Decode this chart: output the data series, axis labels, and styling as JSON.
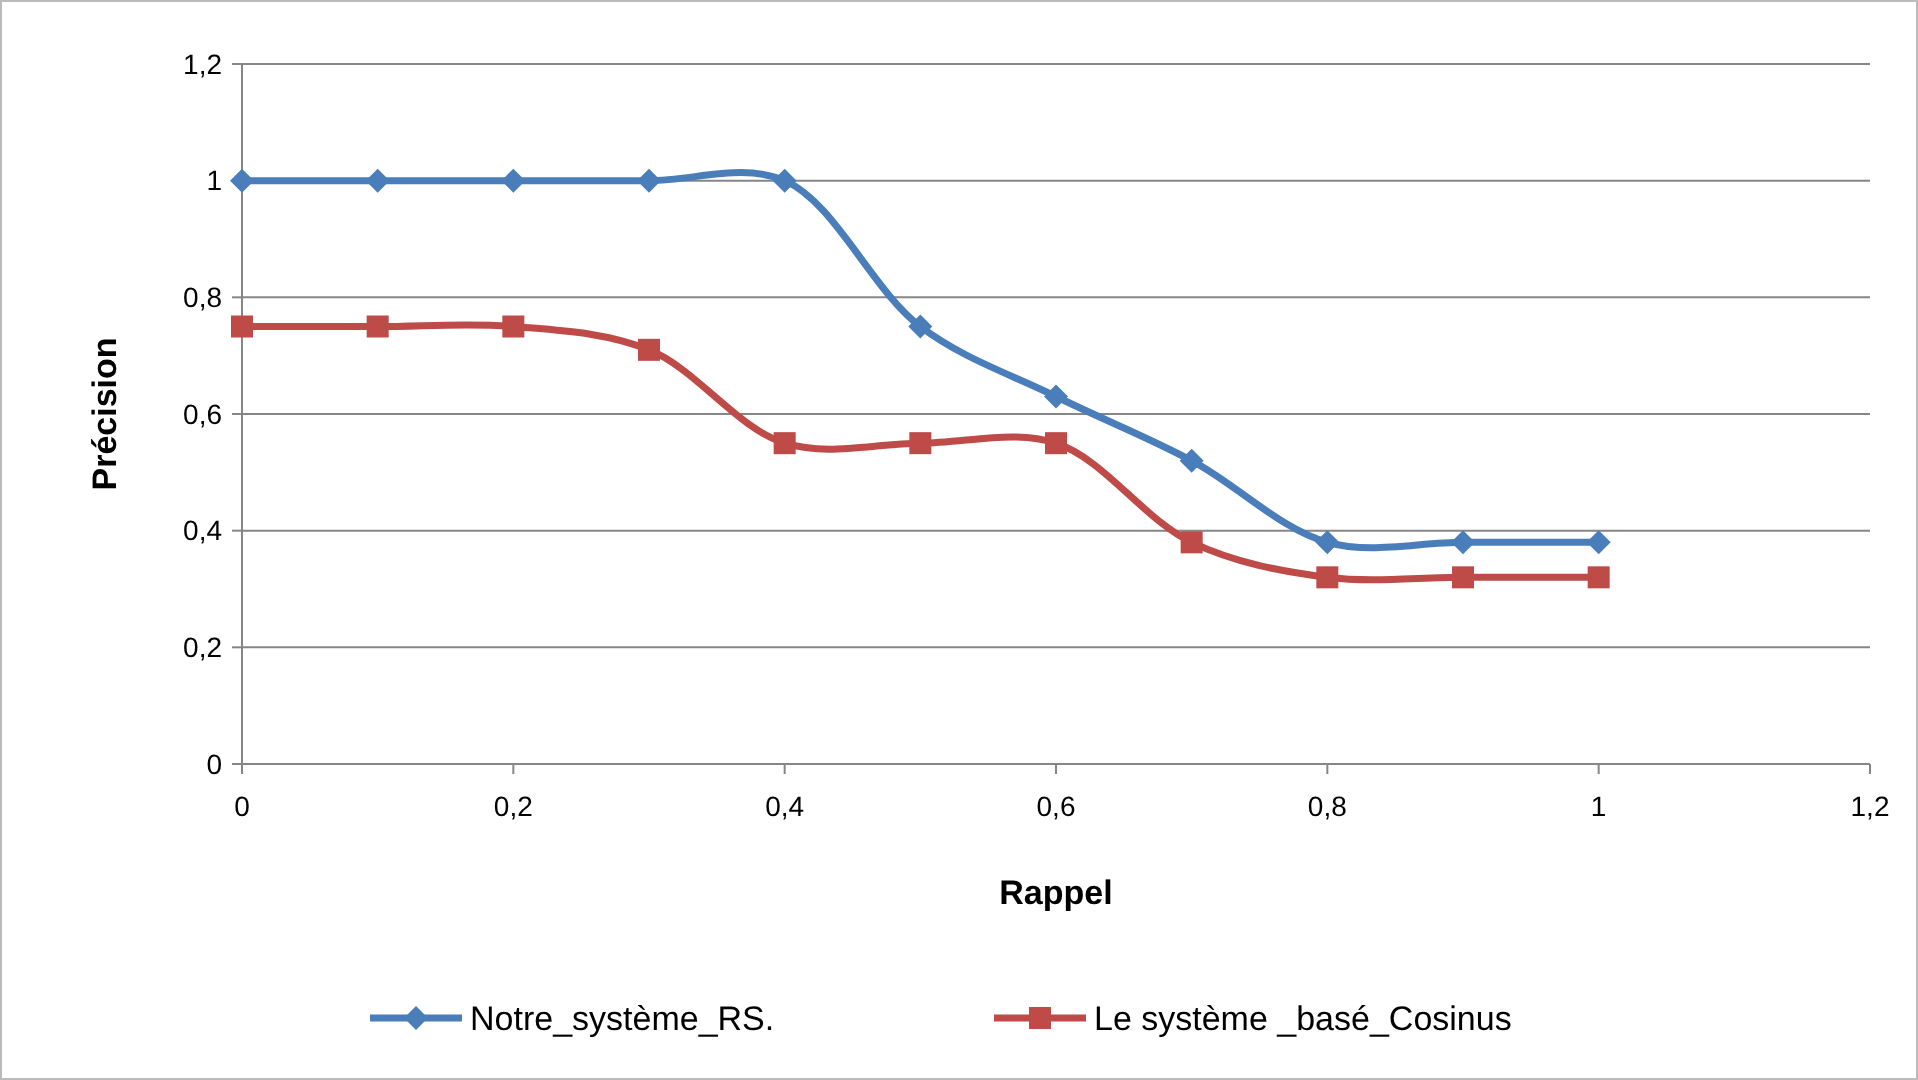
{
  "chart_data": {
    "type": "line",
    "xlabel": "Rappel",
    "ylabel": "Précision",
    "x": [
      0,
      0.1,
      0.2,
      0.3,
      0.4,
      0.5,
      0.6,
      0.7,
      0.8,
      0.9,
      1
    ],
    "series": [
      {
        "name": "Notre_système_RS.",
        "color": "#4a7ebb",
        "marker": "diamond",
        "values": [
          1,
          1,
          1,
          1,
          1,
          0.75,
          0.63,
          0.52,
          0.38,
          0.38,
          0.38
        ]
      },
      {
        "name": "Le système _basé_Cosinus",
        "color": "#be4b48",
        "marker": "square",
        "values": [
          0.75,
          0.75,
          0.75,
          0.71,
          0.55,
          0.55,
          0.55,
          0.38,
          0.32,
          0.32,
          0.32
        ]
      }
    ],
    "xlim": [
      0,
      1.2
    ],
    "xticks": [
      {
        "value": 0,
        "label": "0"
      },
      {
        "value": 0.2,
        "label": "0,2"
      },
      {
        "value": 0.4,
        "label": "0,4"
      },
      {
        "value": 0.6,
        "label": "0,6"
      },
      {
        "value": 0.8,
        "label": "0,8"
      },
      {
        "value": 1,
        "label": "1"
      },
      {
        "value": 1.2,
        "label": "1,2"
      }
    ],
    "ylim": [
      0,
      1.2
    ],
    "yticks": [
      {
        "value": 0,
        "label": "0"
      },
      {
        "value": 0.2,
        "label": "0,2"
      },
      {
        "value": 0.4,
        "label": "0,4"
      },
      {
        "value": 0.6,
        "label": "0,6"
      },
      {
        "value": 0.8,
        "label": "0,8"
      },
      {
        "value": 1,
        "label": "1"
      },
      {
        "value": 1.2,
        "label": "1,2"
      }
    ],
    "grid": "y",
    "legend": "bottom",
    "line_style": "solid"
  }
}
